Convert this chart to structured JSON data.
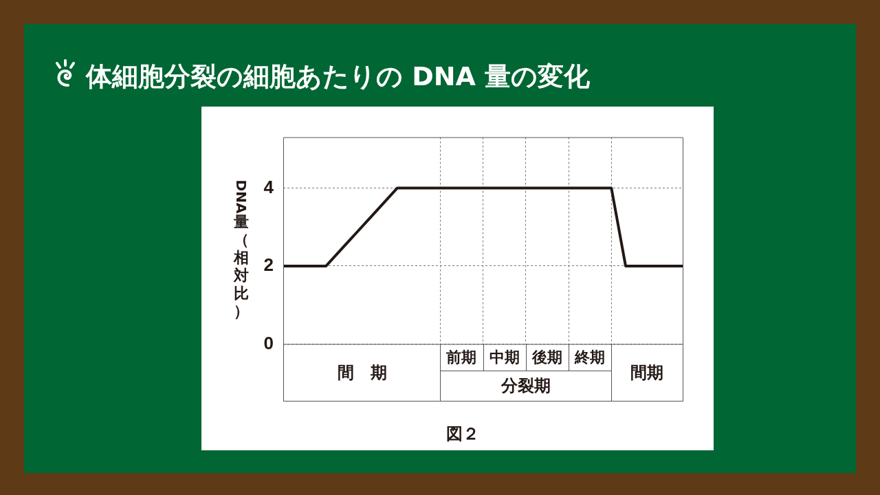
{
  "chart_data": {
    "type": "line",
    "title": "体細胞分裂の細胞あたりの DNA 量の変化",
    "ylabel": "DNA 量（相対比）",
    "categories": [
      null,
      null,
      null,
      null,
      null,
      null,
      null,
      null,
      null,
      null,
      null,
      null,
      null,
      null,
      null,
      null,
      null,
      null,
      null,
      null,
      null,
      null,
      null,
      null,
      null,
      null,
      null,
      null,
      null
    ],
    "values": [
      2,
      2,
      2,
      2,
      2.4,
      2.8,
      3.2,
      3.6,
      4,
      4,
      4,
      4,
      4,
      4,
      4,
      4,
      4,
      4,
      4,
      4,
      4,
      4,
      4,
      4,
      2,
      2,
      2,
      2,
      2
    ],
    "color": "#231815",
    "ylim": [
      0,
      5.3
    ],
    "yticks": [
      0,
      2,
      4
    ],
    "grid": true,
    "tick_labels": "y",
    "marker": "none",
    "line_style": "solid",
    "annotations": [
      "間　期",
      "前期",
      "中期",
      "後期",
      "終期",
      "分裂期",
      "間期",
      "図２"
    ]
  }
}
